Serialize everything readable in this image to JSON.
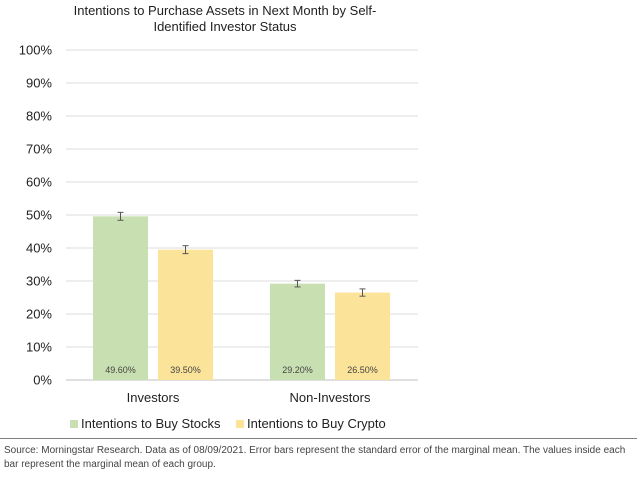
{
  "chart_data": {
    "type": "bar",
    "title_lines": [
      "Intentions to Purchase Assets in Next Month by Self-",
      "Identified Investor Status"
    ],
    "categories": [
      "Investors",
      "Non-Investors"
    ],
    "series": [
      {
        "name": "Intentions to Buy Stocks",
        "color": "#c8dfb1",
        "values": [
          49.6,
          29.2
        ],
        "labels": [
          "49.60%",
          "29.20%"
        ],
        "errors": [
          1.2,
          1.0
        ]
      },
      {
        "name": "Intentions to Buy Crypto",
        "color": "#fbe39a",
        "values": [
          39.5,
          26.5
        ],
        "labels": [
          "39.50%",
          "26.50%"
        ],
        "errors": [
          1.2,
          1.1
        ]
      }
    ],
    "ylim": [
      0,
      100
    ],
    "yticks": [
      0,
      10,
      20,
      30,
      40,
      50,
      60,
      70,
      80,
      90,
      100
    ],
    "ytick_labels": [
      "0%",
      "10%",
      "20%",
      "30%",
      "40%",
      "50%",
      "60%",
      "70%",
      "80%",
      "90%",
      "100%"
    ],
    "grid": true,
    "legend_position": "bottom"
  },
  "source_note": "Source: Morningstar Research. Data as of 08/09/2021. Error bars represent the standard error of the marginal mean.  The values inside each bar represent the marginal mean of each group."
}
